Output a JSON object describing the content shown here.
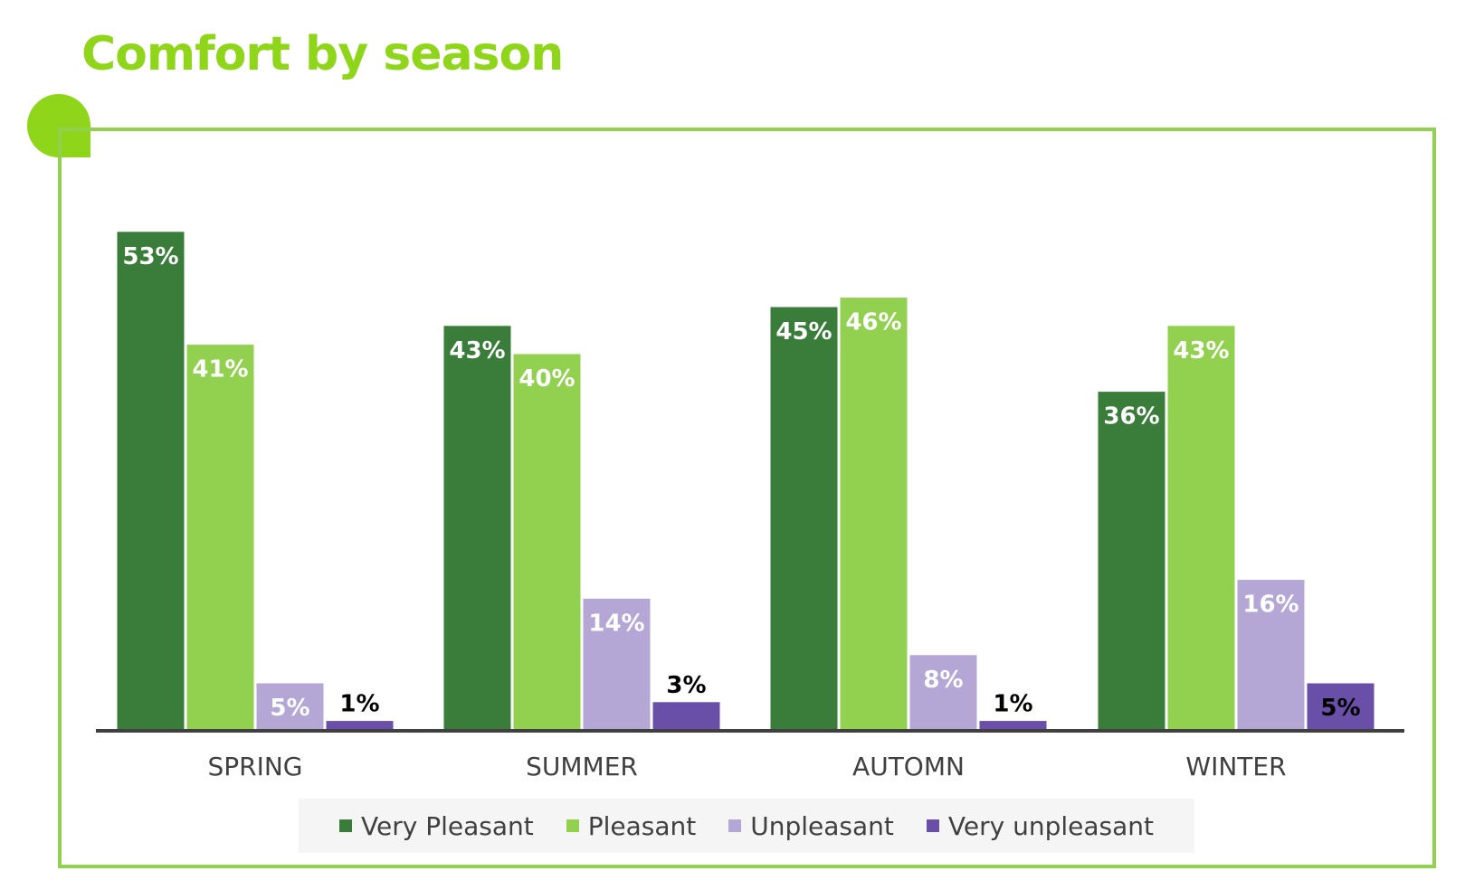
{
  "title": "Comfort by season",
  "colors": {
    "title": "#8fd61a",
    "frame": "#92d050",
    "axis": "#404040"
  },
  "chart_data": {
    "type": "bar",
    "categories": [
      "SPRING",
      "SUMMER",
      "AUTOMN",
      "WINTER"
    ],
    "series": [
      {
        "name": "Very Pleasant",
        "color": "#3a7d3a",
        "label_color": "#ffffff",
        "values": [
          53,
          43,
          45,
          36
        ],
        "labels": [
          "53%",
          "43%",
          "45%",
          "36%"
        ]
      },
      {
        "name": "Pleasant",
        "color": "#92d050",
        "label_color": "#ffffff",
        "values": [
          41,
          40,
          46,
          43
        ],
        "labels": [
          "41%",
          "40%",
          "46%",
          "43%"
        ]
      },
      {
        "name": "Unpleasant",
        "color": "#b4a7d6",
        "label_color": "#ffffff",
        "values": [
          5,
          14,
          8,
          16
        ],
        "labels": [
          "5%",
          "14%",
          "8%",
          "16%"
        ]
      },
      {
        "name": "Very unpleasant",
        "color": "#6a4fa8",
        "label_color": "#000000",
        "values": [
          1,
          3,
          1,
          5
        ],
        "labels": [
          "1%",
          "3%",
          "1%",
          "5%"
        ]
      }
    ],
    "ylim": [
      0,
      53
    ],
    "legend_position": "bottom",
    "xlabel": "",
    "ylabel": ""
  }
}
